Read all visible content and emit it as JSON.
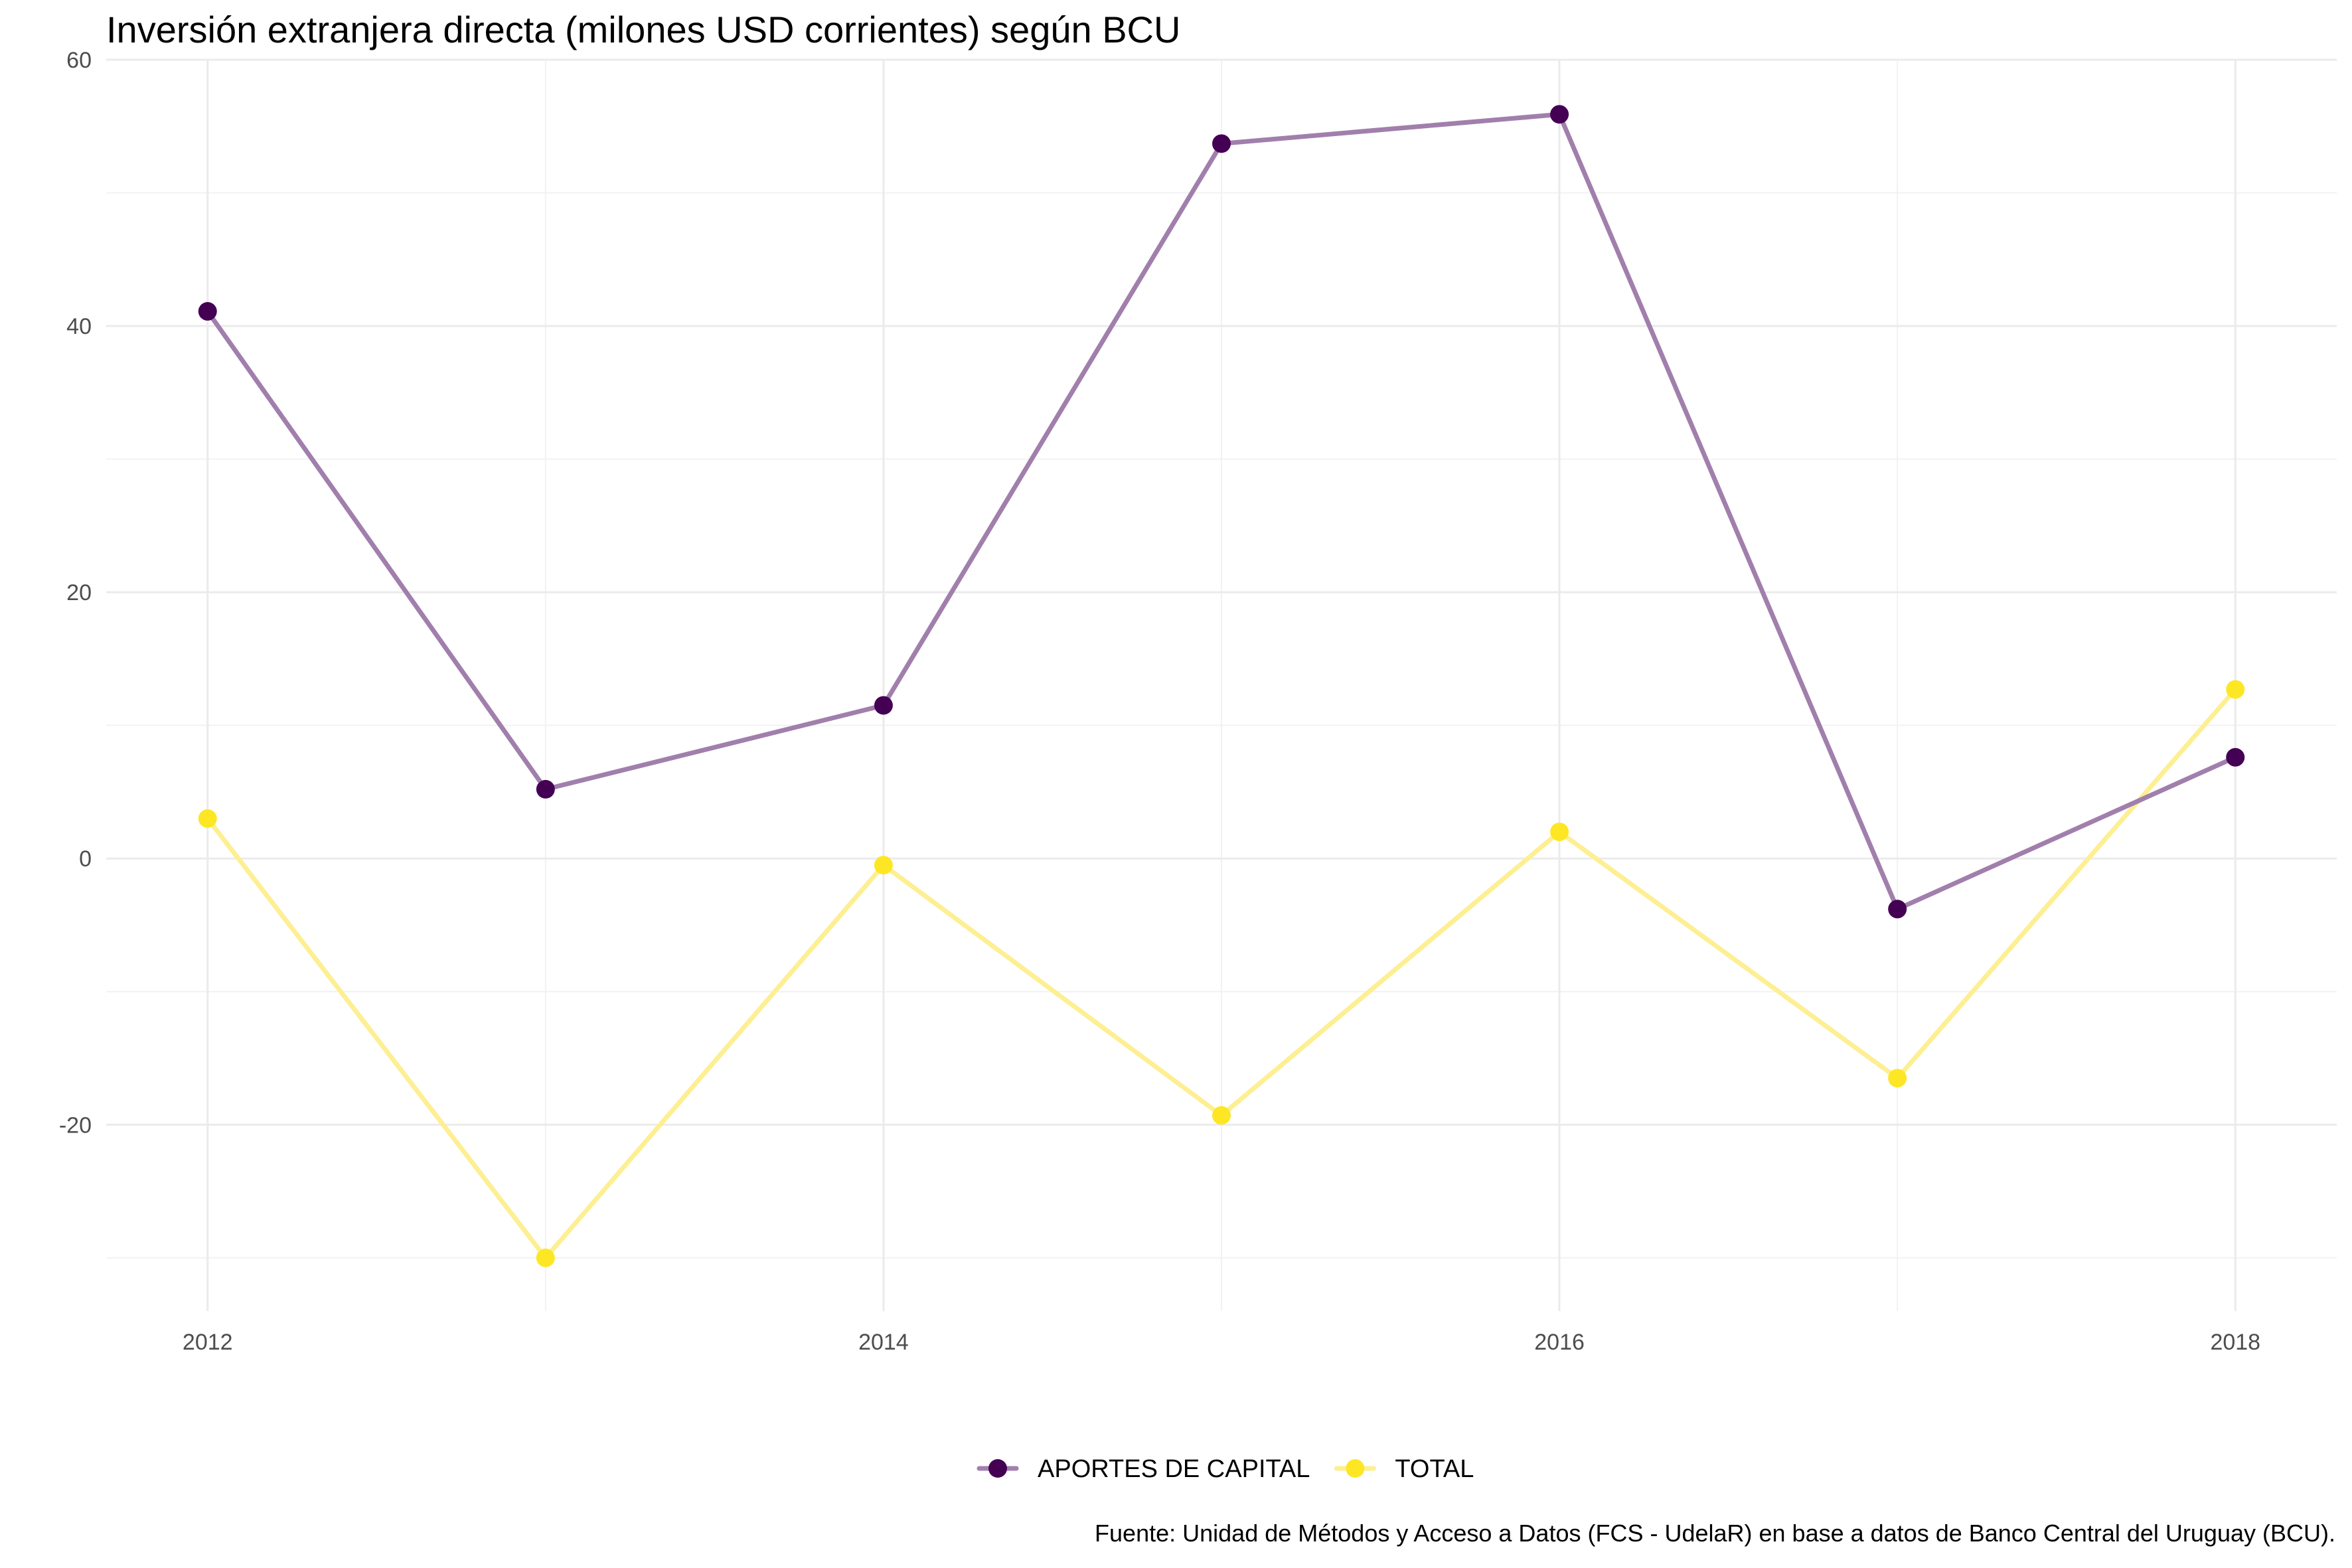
{
  "chart_data": {
    "type": "line",
    "title": "Inversión extranjera directa (milones USD corrientes) según BCU",
    "xlabel": "",
    "ylabel": "",
    "x": [
      2012,
      2013,
      2014,
      2015,
      2016,
      2017,
      2018
    ],
    "x_ticks": [
      "2012",
      "2014",
      "2016",
      "2018"
    ],
    "y_ticks": [
      "60",
      "40",
      "20",
      "0",
      "-20"
    ],
    "xlim": [
      2011.7,
      2018.3
    ],
    "ylim": [
      -34,
      60
    ],
    "grid": true,
    "legend_position": "bottom",
    "series": [
      {
        "name": "APORTES DE CAPITAL",
        "color": "#440154",
        "line_color": "#a17fac",
        "values": [
          41.1,
          5.2,
          11.5,
          53.7,
          55.9,
          -3.8,
          7.6
        ]
      },
      {
        "name": "TOTAL",
        "color": "#fde725",
        "line_color": "#fdef92",
        "values": [
          3.0,
          -30.0,
          -0.5,
          -19.3,
          2.0,
          -16.5,
          12.7
        ]
      }
    ],
    "caption": "Fuente: Unidad de Métodos y Acceso a Datos (FCS - UdelaR) en base a datos de Banco Central del Uruguay (BCU)."
  }
}
